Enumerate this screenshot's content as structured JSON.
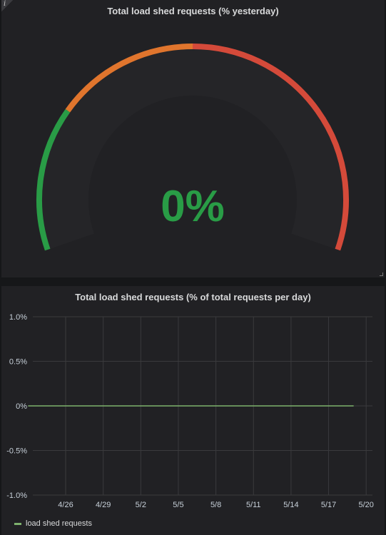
{
  "gauge_panel": {
    "title": "Total load shed requests (% yesterday)",
    "value": 0,
    "value_text": "0%",
    "min": 0,
    "max": 100,
    "thresholds": [
      {
        "from": 0,
        "to": 25,
        "color": "#299c46"
      },
      {
        "from": 25,
        "to": 50,
        "color": "#e0752d"
      },
      {
        "from": 50,
        "to": 100,
        "color": "#d44a3a"
      }
    ],
    "value_color": "#299c46",
    "info_icon": "info-icon"
  },
  "graph_panel": {
    "title": "Total load shed requests (% of total requests per day)",
    "legend": [
      {
        "label": "load shed requests",
        "color": "#7eb26d"
      }
    ]
  },
  "chart_data": {
    "type": "line",
    "ylim": [
      -1.0,
      1.0
    ],
    "y_ticks": [
      "1.0%",
      "0.5%",
      "0%",
      "-0.5%",
      "-1.0%"
    ],
    "y_tick_values": [
      1.0,
      0.5,
      0,
      -0.5,
      -1.0
    ],
    "x_ticks": [
      "4/26",
      "4/29",
      "5/2",
      "5/5",
      "5/8",
      "5/11",
      "5/14",
      "5/17",
      "5/20"
    ],
    "grid": true,
    "series": [
      {
        "name": "load shed requests",
        "color": "#7eb26d",
        "x": [
          "4/23",
          "4/24",
          "4/25",
          "4/26",
          "4/27",
          "4/28",
          "4/29",
          "4/30",
          "5/1",
          "5/2",
          "5/3",
          "5/4",
          "5/5",
          "5/6",
          "5/7",
          "5/8",
          "5/9",
          "5/10",
          "5/11",
          "5/12",
          "5/13",
          "5/14",
          "5/15",
          "5/16",
          "5/17",
          "5/18",
          "5/19"
        ],
        "values": [
          0,
          0,
          0,
          0,
          0,
          0,
          0,
          0,
          0,
          0,
          0,
          0,
          0,
          0,
          0,
          0,
          0,
          0,
          0,
          0,
          0,
          0,
          0,
          0,
          0,
          0,
          0
        ]
      }
    ]
  }
}
